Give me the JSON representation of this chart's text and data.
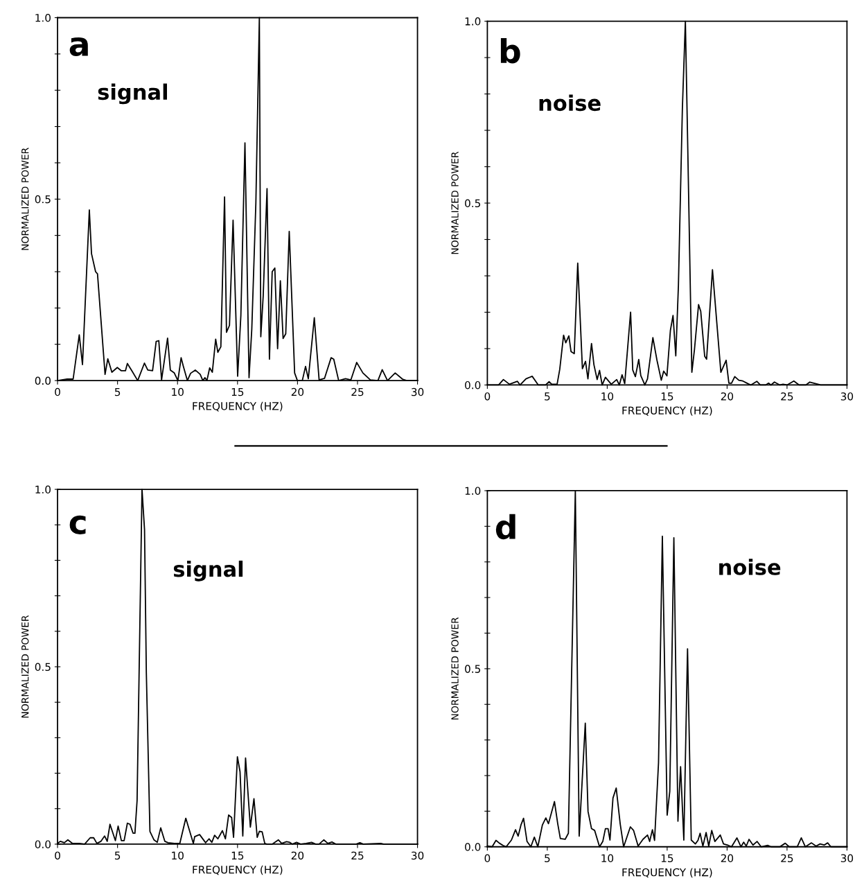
{
  "chart_data": [
    {
      "type": "line",
      "xlabel": "FREQUENCY (HZ)",
      "ylabel": "NORMALIZED POWER",
      "annotations": [
        "a",
        "signal"
      ],
      "xlim": [
        0,
        30
      ],
      "ylim": [
        0,
        1
      ],
      "xticks": [
        0,
        5,
        10,
        15,
        20,
        25,
        30
      ],
      "yticks": [
        {
          "value": 0,
          "label": "0.0"
        },
        {
          "value": 0.1,
          "label": null
        },
        {
          "value": 0.2,
          "label": null
        },
        {
          "value": 0.3,
          "label": null
        },
        {
          "value": 0.4,
          "label": null
        },
        {
          "value": 0.5,
          "label": "0.5"
        },
        {
          "value": 0.6,
          "label": null
        },
        {
          "value": 0.7,
          "label": null
        },
        {
          "value": 0.8,
          "label": null
        },
        {
          "value": 0.9,
          "label": null
        },
        {
          "value": 1,
          "label": "1.0"
        }
      ],
      "grid": false,
      "line_style": "solid",
      "marker": "none",
      "series": [
        {
          "color": "#000000",
          "x": [
            0,
            0.8,
            1.3,
            1.81,
            2.08,
            2.65,
            2.83,
            3.17,
            3.33,
            3.96,
            4.19,
            4.53,
            4.98,
            5.32,
            5.66,
            5.82,
            6.23,
            6.68,
            7.24,
            7.52,
            7.92,
            8.22,
            8.44,
            8.67,
            9.17,
            9.4,
            9.73,
            10.03,
            10.3,
            10.48,
            10.82,
            11.09,
            11.48,
            11.89,
            12.11,
            12.29,
            12.45,
            12.68,
            12.9,
            13.18,
            13.36,
            13.61,
            13.92,
            14.08,
            14.33,
            14.63,
            15.01,
            15.28,
            15.62,
            15.96,
            16.19,
            16.53,
            16.82,
            16.94,
            17.14,
            17.46,
            17.66,
            17.89,
            18.11,
            18.34,
            18.57,
            18.8,
            19.02,
            19.31,
            19.76,
            19.99,
            20.4,
            20.67,
            20.9,
            21.4,
            21.8,
            22.25,
            22.8,
            23.02,
            23.43,
            24.0,
            24.45,
            24.93,
            25.45,
            26.07,
            26.7,
            27.06,
            27.5,
            28.14,
            28.75,
            29.1,
            30
          ],
          "values": [
            0,
            0.004,
            0.004,
            0.126,
            0.044,
            0.47,
            0.35,
            0.3,
            0.294,
            0.017,
            0.06,
            0.023,
            0.036,
            0.027,
            0.027,
            0.047,
            0.025,
            0,
            0.048,
            0.029,
            0.027,
            0.108,
            0.11,
            0.002,
            0.117,
            0.029,
            0.021,
            0,
            0.063,
            0.04,
            0,
            0.02,
            0.029,
            0.017,
            0,
            0.008,
            0,
            0.035,
            0.023,
            0.114,
            0.078,
            0.093,
            0.506,
            0.133,
            0.152,
            0.442,
            0.012,
            0.18,
            0.655,
            0.008,
            0.142,
            0.49,
            1.0,
            0.121,
            0.233,
            0.529,
            0.059,
            0.3,
            0.31,
            0.088,
            0.275,
            0.116,
            0.129,
            0.411,
            0.021,
            0,
            0,
            0.039,
            0.005,
            0.173,
            0.002,
            0.006,
            0.063,
            0.059,
            0,
            0.005,
            0.002,
            0.05,
            0.021,
            0.002,
            0,
            0.03,
            0,
            0.021,
            0.004,
            0,
            0
          ]
        }
      ]
    },
    {
      "type": "line",
      "xlabel": "FREQUENCY (HZ)",
      "ylabel": "NORMALIZED POWER",
      "annotations": [
        "b",
        "noise"
      ],
      "xlim": [
        0,
        30
      ],
      "ylim": [
        0,
        1
      ],
      "xticks": [
        0,
        5,
        10,
        15,
        20,
        25,
        30
      ],
      "yticks": [
        {
          "value": 0,
          "label": "0.0"
        },
        {
          "value": 0.1,
          "label": null
        },
        {
          "value": 0.2,
          "label": null
        },
        {
          "value": 0.3,
          "label": null
        },
        {
          "value": 0.4,
          "label": null
        },
        {
          "value": 0.5,
          "label": "0.5"
        },
        {
          "value": 0.6,
          "label": null
        },
        {
          "value": 0.7,
          "label": null
        },
        {
          "value": 0.8,
          "label": null
        },
        {
          "value": 0.9,
          "label": null
        },
        {
          "value": 1,
          "label": "1.0"
        }
      ],
      "grid": false,
      "line_style": "solid",
      "marker": "none",
      "series": [
        {
          "color": "#000000",
          "x": [
            0,
            0.94,
            1.34,
            1.84,
            2.51,
            2.73,
            3.22,
            3.74,
            4.25,
            4.86,
            5.15,
            5.37,
            5.82,
            6.04,
            6.36,
            6.54,
            6.8,
            6.98,
            7.25,
            7.54,
            7.93,
            8.19,
            8.39,
            8.69,
            8.89,
            9.16,
            9.36,
            9.58,
            9.85,
            10.34,
            10.79,
            11.01,
            11.24,
            11.46,
            11.95,
            12.13,
            12.35,
            12.63,
            12.8,
            13.14,
            13.36,
            13.81,
            14.15,
            14.51,
            14.71,
            14.98,
            15.27,
            15.49,
            15.72,
            15.94,
            16.27,
            16.52,
            16.72,
            17.06,
            17.28,
            17.62,
            17.8,
            18.13,
            18.29,
            18.78,
            19.48,
            19.92,
            20.15,
            20.37,
            20.64,
            20.98,
            21.31,
            21.72,
            21.98,
            22.48,
            22.77,
            23.22,
            23.46,
            23.66,
            23.95,
            24.4,
            24.67,
            25.0,
            25.57,
            26.01,
            26.57,
            26.9,
            27.58,
            27.8,
            30
          ],
          "values": [
            0,
            0,
            0.015,
            0.002,
            0.01,
            0,
            0.017,
            0.024,
            0,
            0,
            0.009,
            0.002,
            0.002,
            0.043,
            0.137,
            0.116,
            0.135,
            0.092,
            0.086,
            0.335,
            0.045,
            0.065,
            0.017,
            0.114,
            0.056,
            0.015,
            0.04,
            0,
            0.021,
            0.002,
            0.015,
            0,
            0.028,
            0.004,
            0.2,
            0.041,
            0.023,
            0.07,
            0.026,
            0,
            0.017,
            0.13,
            0.068,
            0.013,
            0.038,
            0.025,
            0.15,
            0.191,
            0.08,
            0.274,
            0.76,
            1.0,
            0.65,
            0.035,
            0.098,
            0.221,
            0.203,
            0.079,
            0.071,
            0.317,
            0.035,
            0.068,
            0.005,
            0.005,
            0.023,
            0.013,
            0.011,
            0.004,
            0,
            0.01,
            0,
            0,
            0.005,
            0,
            0.008,
            0,
            0.002,
            0,
            0.011,
            0,
            0,
            0.008,
            0.002,
            0,
            0
          ]
        }
      ]
    },
    {
      "type": "line",
      "xlabel": "FREQUENCY (HZ)",
      "ylabel": "NORMALIZED POWER",
      "annotations": [
        "c",
        "signal"
      ],
      "xlim": [
        0,
        30
      ],
      "ylim": [
        0,
        1
      ],
      "xticks": [
        0,
        5,
        10,
        15,
        20,
        25,
        30
      ],
      "yticks": [
        {
          "value": 0,
          "label": "0.0"
        },
        {
          "value": 0.1,
          "label": null
        },
        {
          "value": 0.2,
          "label": null
        },
        {
          "value": 0.3,
          "label": null
        },
        {
          "value": 0.4,
          "label": null
        },
        {
          "value": 0.5,
          "label": "0.5"
        },
        {
          "value": 0.6,
          "label": null
        },
        {
          "value": 0.7,
          "label": null
        },
        {
          "value": 0.8,
          "label": null
        },
        {
          "value": 0.9,
          "label": null
        },
        {
          "value": 1,
          "label": "1.0"
        }
      ],
      "grid": false,
      "line_style": "solid",
      "marker": "none",
      "series": [
        {
          "color": "#000000",
          "x": [
            0,
            0.23,
            0.57,
            0.86,
            1.25,
            1.81,
            2.26,
            2.72,
            3.01,
            3.28,
            3.62,
            3.92,
            4.14,
            4.37,
            4.82,
            5.05,
            5.32,
            5.55,
            5.82,
            6.04,
            6.29,
            6.45,
            6.63,
            7.04,
            7.25,
            7.4,
            7.7,
            8.04,
            8.31,
            8.6,
            8.94,
            9.21,
            9.73,
            10.19,
            10.69,
            11.32,
            11.43,
            11.84,
            12.34,
            12.63,
            12.86,
            13.09,
            13.36,
            13.74,
            13.99,
            14.26,
            14.51,
            14.67,
            14.99,
            15.21,
            15.44,
            15.67,
            16.07,
            16.37,
            16.64,
            16.82,
            17.05,
            17.27,
            17.43,
            17.89,
            18.41,
            18.68,
            19.09,
            19.36,
            19.58,
            19.92,
            20.26,
            20.72,
            21.17,
            21.51,
            21.8,
            22.19,
            22.53,
            22.87,
            23.21,
            24.9,
            25.2,
            25.47,
            26.94,
            27.17,
            30
          ],
          "values": [
            0.002,
            0.008,
            0.004,
            0.012,
            0.002,
            0.002,
            0,
            0.018,
            0.018,
            0.002,
            0.008,
            0.023,
            0.008,
            0.056,
            0.01,
            0.051,
            0.01,
            0.01,
            0.059,
            0.056,
            0.031,
            0.031,
            0.123,
            1.0,
            0.887,
            0.484,
            0.036,
            0.012,
            0.005,
            0.046,
            0.008,
            0.004,
            0.002,
            0.002,
            0.073,
            0.002,
            0.021,
            0.027,
            0.004,
            0.015,
            0.005,
            0.025,
            0.015,
            0.038,
            0.015,
            0.082,
            0.075,
            0.019,
            0.246,
            0.204,
            0.023,
            0.243,
            0.048,
            0.128,
            0.019,
            0.036,
            0.035,
            0.002,
            0,
            0,
            0.012,
            0.002,
            0.007,
            0.005,
            0,
            0.005,
            0,
            0.002,
            0.005,
            0,
            0,
            0.012,
            0.002,
            0.006,
            0,
            0,
            0.004,
            0,
            0.002,
            0,
            0
          ]
        }
      ]
    },
    {
      "type": "line",
      "xlabel": "FREQUENCY (HZ)",
      "ylabel": "NORMALIZED POWER",
      "annotations": [
        "d",
        "noise"
      ],
      "xlim": [
        0,
        30
      ],
      "ylim": [
        0,
        1
      ],
      "xticks": [
        0,
        5,
        10,
        15,
        20,
        25,
        30
      ],
      "yticks": [
        {
          "value": 0,
          "label": "0.0"
        },
        {
          "value": 0.1,
          "label": null
        },
        {
          "value": 0.2,
          "label": null
        },
        {
          "value": 0.3,
          "label": null
        },
        {
          "value": 0.4,
          "label": null
        },
        {
          "value": 0.5,
          "label": "0.5"
        },
        {
          "value": 0.6,
          "label": null
        },
        {
          "value": 0.7,
          "label": null
        },
        {
          "value": 0.8,
          "label": null
        },
        {
          "value": 0.9,
          "label": null
        },
        {
          "value": 1,
          "label": "1.0"
        }
      ],
      "grid": false,
      "line_style": "solid",
      "marker": "none",
      "series": [
        {
          "color": "#000000",
          "x": [
            0,
            0.4,
            0.72,
            1.01,
            1.3,
            1.57,
            2.01,
            2.35,
            2.57,
            2.8,
            3.02,
            3.31,
            3.63,
            3.92,
            4.21,
            4.59,
            4.88,
            5.1,
            5.6,
            5.87,
            6.09,
            6.49,
            6.76,
            7.34,
            7.66,
            8.17,
            8.4,
            8.69,
            8.95,
            9.36,
            9.63,
            9.85,
            10.07,
            10.23,
            10.48,
            10.75,
            11.08,
            11.37,
            11.93,
            12.2,
            12.58,
            12.98,
            13.36,
            13.54,
            13.77,
            13.95,
            14.28,
            14.6,
            15.0,
            15.22,
            15.56,
            15.9,
            16.12,
            16.39,
            16.7,
            17.01,
            17.35,
            17.57,
            17.75,
            17.98,
            18.25,
            18.47,
            18.72,
            18.98,
            19.43,
            19.7,
            20.1,
            20.37,
            20.82,
            21.16,
            21.38,
            21.6,
            21.83,
            22.16,
            22.5,
            22.84,
            23.4,
            23.68,
            24.4,
            24.85,
            25.18,
            25.85,
            26.19,
            26.53,
            27.04,
            27.42,
            27.76,
            28.1,
            28.39,
            28.66,
            30
          ],
          "values": [
            0.002,
            0,
            0.018,
            0.01,
            0.004,
            0,
            0.019,
            0.048,
            0.03,
            0.061,
            0.08,
            0.015,
            0,
            0.027,
            0,
            0.061,
            0.081,
            0.065,
            0.127,
            0.065,
            0.023,
            0.021,
            0.038,
            1.0,
            0.03,
            0.347,
            0.099,
            0.051,
            0.046,
            0,
            0.015,
            0.051,
            0.051,
            0.019,
            0.137,
            0.165,
            0.065,
            0,
            0.056,
            0.046,
            0.002,
            0.021,
            0.033,
            0.015,
            0.048,
            0.018,
            0.236,
            0.872,
            0.089,
            0.156,
            0.868,
            0.072,
            0.225,
            0.019,
            0.556,
            0.019,
            0.008,
            0.018,
            0.038,
            0.002,
            0.04,
            0.002,
            0.046,
            0.015,
            0.033,
            0.008,
            0.004,
            0,
            0.025,
            0,
            0.013,
            0.002,
            0.021,
            0.005,
            0.015,
            0,
            0.004,
            0,
            0,
            0.01,
            0,
            0,
            0.025,
            0,
            0.011,
            0.002,
            0.008,
            0.005,
            0.011,
            0,
            0
          ]
        }
      ]
    }
  ]
}
